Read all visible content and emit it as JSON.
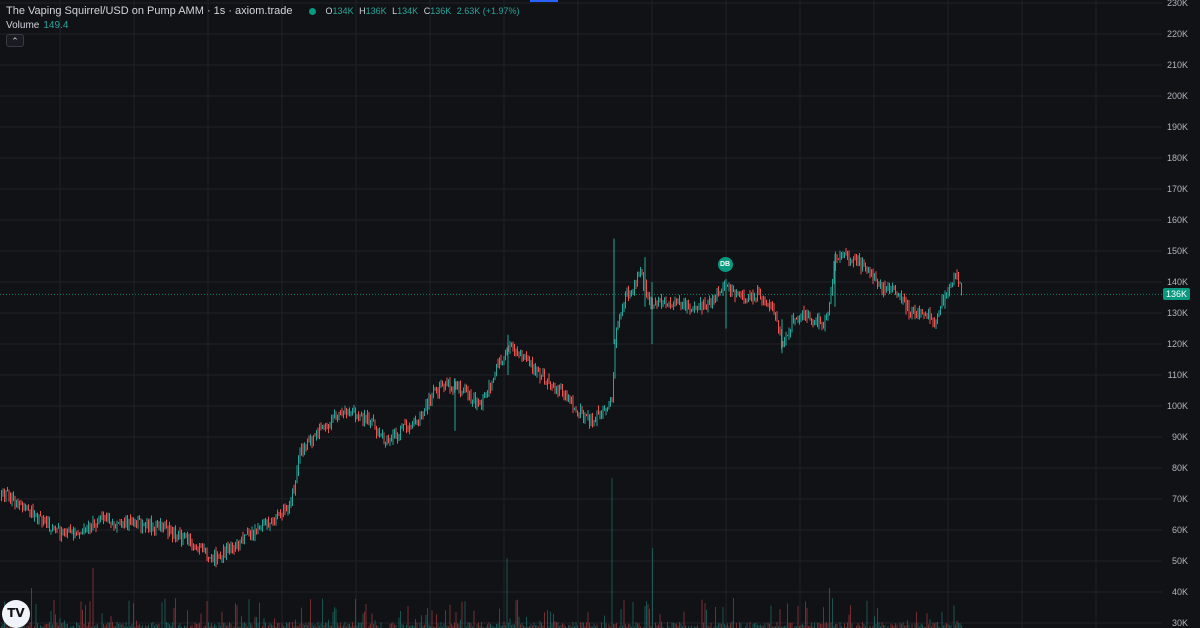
{
  "legend": {
    "title": "The Vaping Squirrel/USD on Pump AMM · 1s · axiom.trade",
    "open_label": "O",
    "open_value": "134K",
    "high_label": "H",
    "high_value": "136K",
    "low_label": "L",
    "low_value": "134K",
    "close_label": "C",
    "close_value": "136K",
    "change": "2.63K (+1.97%)"
  },
  "volume": {
    "label": "Volume",
    "value": "149.4"
  },
  "collapse_icon": "chevron-up-icon",
  "marker": {
    "label": "DB"
  },
  "price_tag": {
    "value": "136K"
  },
  "logo": {
    "text": "TV"
  },
  "colors": {
    "background": "#111216",
    "grid": "#1e2128",
    "up": "#26a69a",
    "down": "#ef5350",
    "accent": "#089981"
  },
  "chart_data": {
    "type": "candlestick",
    "interval": "1s",
    "y_axis": {
      "ticks": [
        "30K",
        "40K",
        "50K",
        "60K",
        "70K",
        "80K",
        "90K",
        "100K",
        "110K",
        "120K",
        "130K",
        "140K",
        "150K",
        "160K",
        "170K",
        "180K",
        "190K",
        "200K",
        "210K",
        "220K",
        "230K"
      ],
      "ylim": [
        30000,
        230000
      ]
    },
    "current_price": 136000,
    "price_path": [
      [
        0,
        72000
      ],
      [
        20,
        69000
      ],
      [
        40,
        63000
      ],
      [
        60,
        59000
      ],
      [
        80,
        60000
      ],
      [
        100,
        63000
      ],
      [
        130,
        62000
      ],
      [
        160,
        61000
      ],
      [
        185,
        57000
      ],
      [
        205,
        53000
      ],
      [
        215,
        51000
      ],
      [
        235,
        55000
      ],
      [
        255,
        59000
      ],
      [
        270,
        63000
      ],
      [
        290,
        68000
      ],
      [
        300,
        85000
      ],
      [
        320,
        92000
      ],
      [
        340,
        98000
      ],
      [
        355,
        97000
      ],
      [
        370,
        95000
      ],
      [
        385,
        88000
      ],
      [
        400,
        92000
      ],
      [
        420,
        96000
      ],
      [
        435,
        105000
      ],
      [
        450,
        107000
      ],
      [
        465,
        104000
      ],
      [
        480,
        100000
      ],
      [
        500,
        115000
      ],
      [
        510,
        120000
      ],
      [
        520,
        116000
      ],
      [
        540,
        110000
      ],
      [
        560,
        105000
      ],
      [
        575,
        99000
      ],
      [
        590,
        95000
      ],
      [
        600,
        98000
      ],
      [
        612,
        102000
      ],
      [
        615,
        125000
      ],
      [
        625,
        135000
      ],
      [
        640,
        142000
      ],
      [
        650,
        133000
      ],
      [
        670,
        134000
      ],
      [
        690,
        131000
      ],
      [
        710,
        133000
      ],
      [
        725,
        139000
      ],
      [
        740,
        135000
      ],
      [
        760,
        136000
      ],
      [
        775,
        130000
      ],
      [
        782,
        118000
      ],
      [
        795,
        130000
      ],
      [
        810,
        128000
      ],
      [
        825,
        126000
      ],
      [
        835,
        148000
      ],
      [
        850,
        148000
      ],
      [
        865,
        145000
      ],
      [
        880,
        138000
      ],
      [
        895,
        137000
      ],
      [
        910,
        130000
      ],
      [
        925,
        131000
      ],
      [
        935,
        127000
      ],
      [
        945,
        136000
      ],
      [
        955,
        143000
      ],
      [
        962,
        136000
      ]
    ],
    "volume": {
      "spikes": [
        {
          "x": 31,
          "value": 40
        },
        {
          "x": 93,
          "value": 60
        },
        {
          "x": 455,
          "value": 80
        },
        {
          "x": 507,
          "value": 70
        },
        {
          "x": 612,
          "value": 150
        },
        {
          "x": 652,
          "value": 80
        },
        {
          "x": 725,
          "value": 55
        },
        {
          "x": 829,
          "value": 40
        }
      ]
    },
    "markers": [
      {
        "label": "DB",
        "x_index": 725,
        "price": 145500
      }
    ]
  }
}
